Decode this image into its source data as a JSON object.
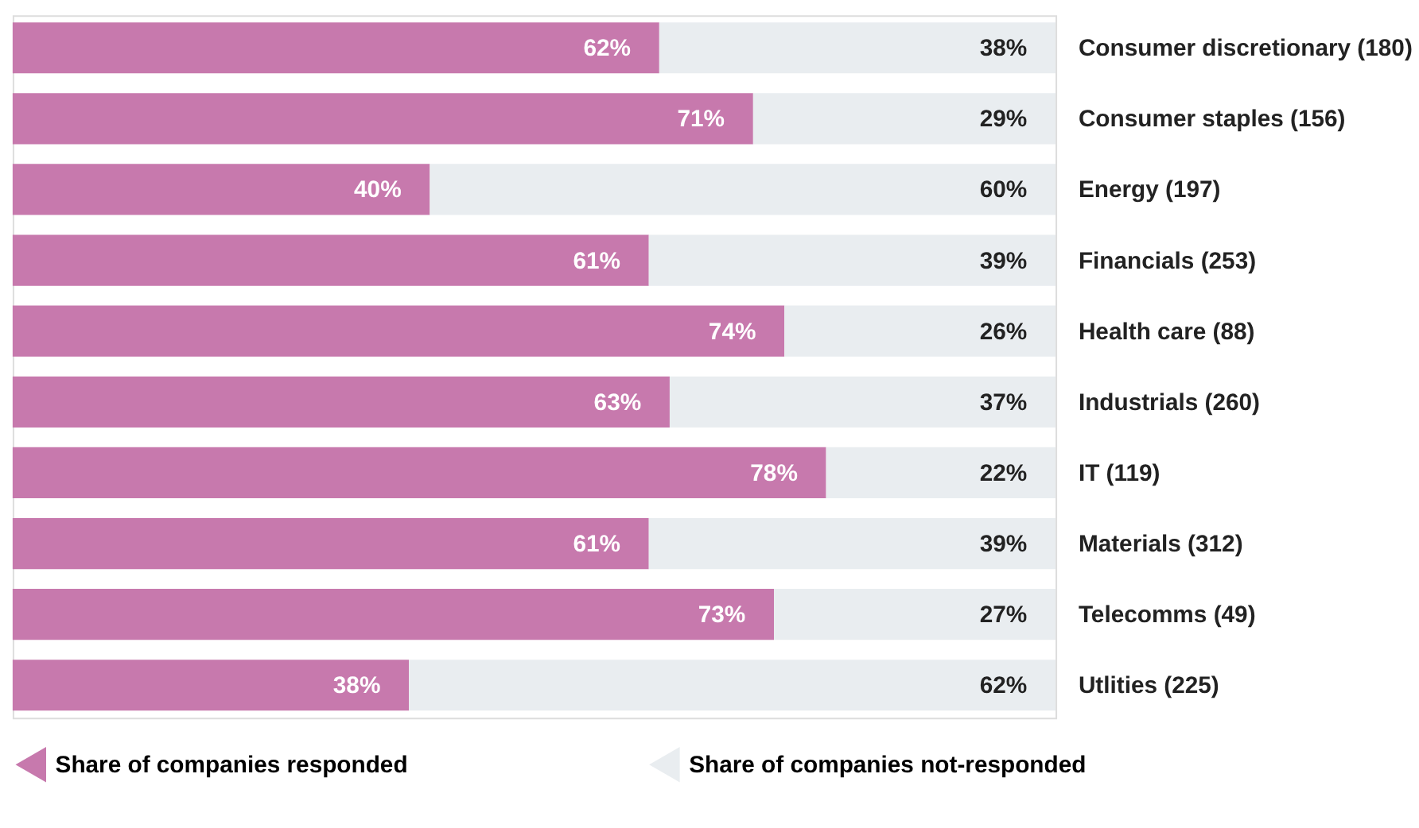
{
  "chart_data": {
    "type": "bar",
    "orientation": "horizontal",
    "stacked": true,
    "legend": "bottom",
    "grid": false,
    "categories": [
      "Consumer discretionary (180)",
      "Consumer staples (156)",
      "Energy (197)",
      "Financials (253)",
      "Health care (88)",
      "Industrials (260)",
      "IT (119)",
      "Materials (312)",
      "Telecomms (49)",
      "Utlities (225)"
    ],
    "series": [
      {
        "name": "Share of companies responded",
        "color": "#c779ad",
        "values": [
          62,
          71,
          40,
          61,
          74,
          63,
          78,
          61,
          73,
          38
        ],
        "value_labels": [
          "62%",
          "71%",
          "40%",
          "61%",
          "74%",
          "63%",
          "78%",
          "61%",
          "73%",
          "38%"
        ]
      },
      {
        "name": "Share of companies not-responded",
        "color": "#e9edf0",
        "values": [
          38,
          29,
          60,
          39,
          26,
          37,
          22,
          39,
          27,
          62
        ],
        "value_labels": [
          "38%",
          "29%",
          "60%",
          "39%",
          "26%",
          "37%",
          "22%",
          "39%",
          "27%",
          "62%"
        ]
      }
    ]
  }
}
